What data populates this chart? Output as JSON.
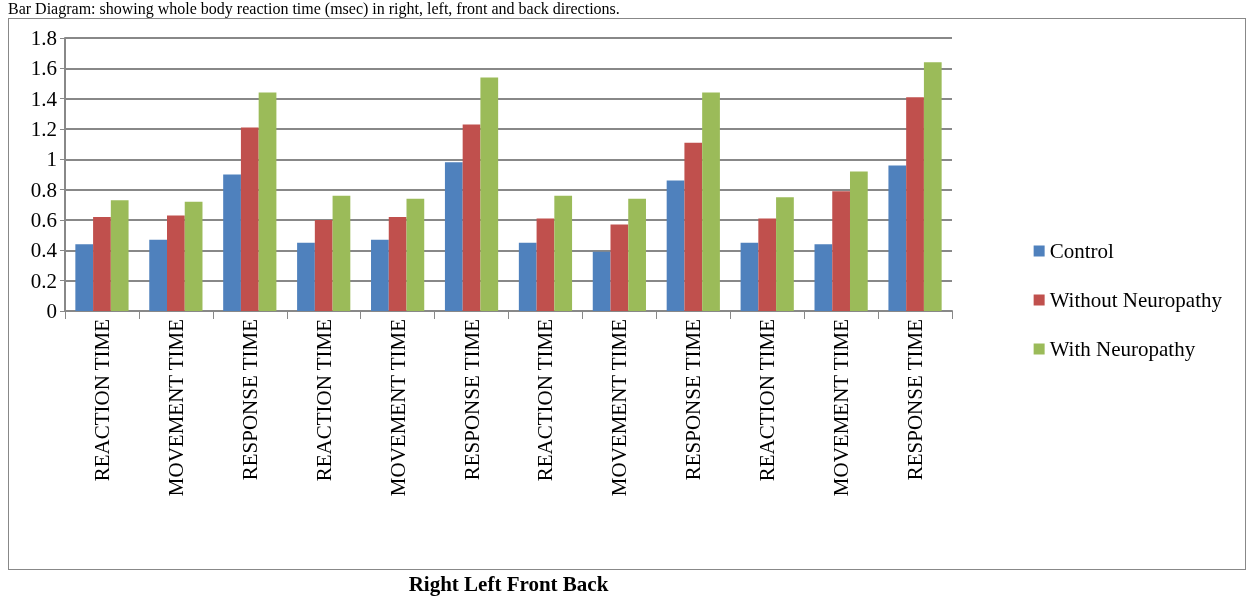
{
  "chart_data": {
    "type": "bar",
    "title": "Bar Diagram: showing whole body reaction time (msec) in right, left, front and back directions.",
    "xlabel": "Right Left Front Back",
    "categories": [
      "REACTION TIME",
      "MOVEMENT TIME",
      "RESPONSE TIME",
      "REACTION TIME",
      "MOVEMENT TIME",
      "RESPONSE TIME",
      "REACTION TIME",
      "MOVEMENT TIME",
      "RESPONSE TIME",
      "REACTION TIME",
      "MOVEMENT TIME",
      "RESPONSE TIME"
    ],
    "series": [
      {
        "name": "Control",
        "color": "#4f81bd",
        "values": [
          0.44,
          0.47,
          0.9,
          0.45,
          0.47,
          0.98,
          0.45,
          0.39,
          0.86,
          0.45,
          0.44,
          0.96
        ]
      },
      {
        "name": "Without Neuropathy",
        "color": "#c0504d",
        "values": [
          0.62,
          0.63,
          1.21,
          0.6,
          0.62,
          1.23,
          0.61,
          0.57,
          1.11,
          0.61,
          0.79,
          1.41
        ]
      },
      {
        "name": "With Neuropathy",
        "color": "#9bbb59",
        "values": [
          0.73,
          0.72,
          1.44,
          0.76,
          0.74,
          1.54,
          0.76,
          0.74,
          1.44,
          0.75,
          0.92,
          1.64
        ]
      }
    ],
    "ylim": [
      0,
      1.8
    ],
    "yticks": [
      0,
      0.2,
      0.4,
      0.6,
      0.8,
      1,
      1.2,
      1.4,
      1.6,
      1.8
    ],
    "grid": "y",
    "legend": "right"
  }
}
